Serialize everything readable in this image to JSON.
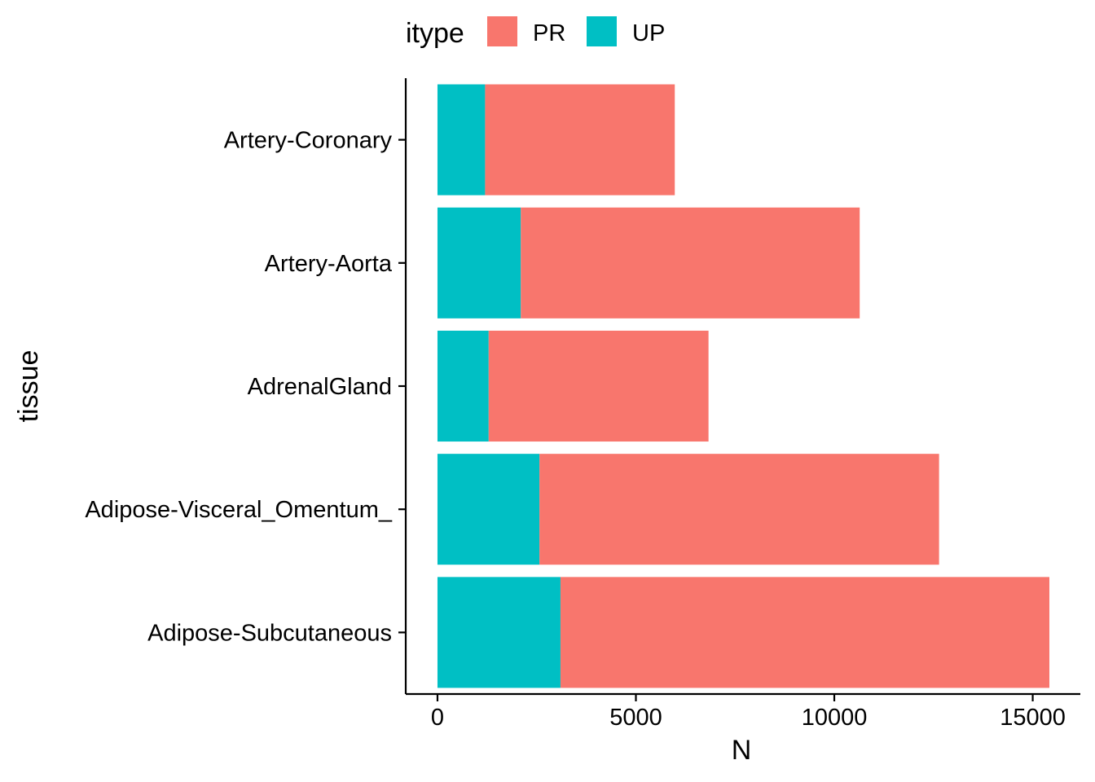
{
  "chart_data": {
    "type": "bar",
    "orientation": "horizontal",
    "stacked": true,
    "categories": [
      "Adipose-Subcutaneous",
      "Adipose-Visceral_Omentum_",
      "AdrenalGland",
      "Artery-Aorta",
      "Artery-Coronary"
    ],
    "series": [
      {
        "name": "UP",
        "color": "#00BFC4",
        "values": [
          3100,
          2570,
          1290,
          2100,
          1200
        ]
      },
      {
        "name": "PR",
        "color": "#F8766D",
        "values": [
          12320,
          10070,
          5540,
          8540,
          4780
        ]
      }
    ],
    "xlabel": "N",
    "ylabel": "tissue",
    "xlim": [
      -800,
      16200
    ],
    "xticks": [
      0,
      5000,
      10000,
      15000
    ],
    "grid": false,
    "legend": {
      "title": "itype",
      "position": "top",
      "entries": [
        {
          "label": "PR",
          "color": "#F8766D"
        },
        {
          "label": "UP",
          "color": "#00BFC4"
        }
      ]
    }
  }
}
